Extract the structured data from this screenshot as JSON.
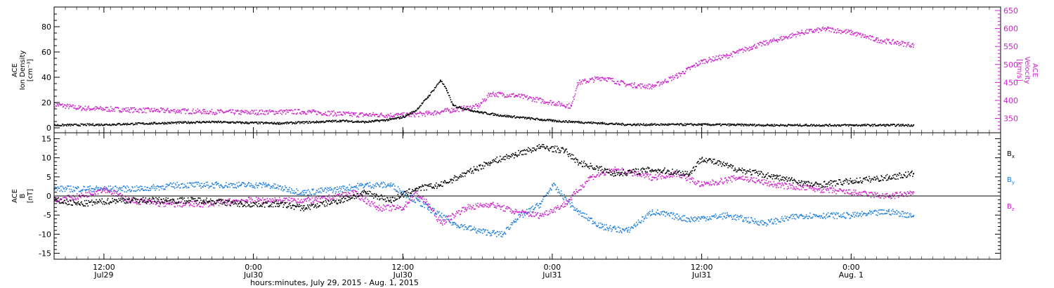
{
  "x_axis": {
    "label": "hours:minutes, July 29, 2015 - Aug. 1, 2015",
    "ticks": [
      {
        "time": "12:00",
        "date": "Jul29"
      },
      {
        "time": "0:00",
        "date": "Jul30"
      },
      {
        "time": "12:00",
        "date": "Jul30"
      },
      {
        "time": "0:00",
        "date": "Jul31"
      },
      {
        "time": "12:00",
        "date": "Jul31"
      },
      {
        "time": "0:00",
        "date": "Aug. 1"
      }
    ]
  },
  "top_panel": {
    "ylabel_lines": [
      "ACE",
      "Ion Density",
      "[cm⁻³]"
    ],
    "y2label_lines": [
      "ACE",
      "Velocity",
      "[km/s]"
    ],
    "left_ticks": [
      "0",
      "20",
      "40",
      "60",
      "80"
    ],
    "right_ticks": [
      "350",
      "400",
      "450",
      "500",
      "550",
      "600",
      "650"
    ]
  },
  "bottom_panel": {
    "ylabel_lines": [
      "ACE",
      "B",
      "[nT]"
    ],
    "ticks": [
      "-15",
      "-10",
      "-5",
      "0",
      "5",
      "10",
      "15"
    ],
    "legend": [
      {
        "base": "B",
        "sub": "x",
        "color": "#000000"
      },
      {
        "base": "B",
        "sub": "y",
        "color": "#1f7fdd"
      },
      {
        "base": "B",
        "sub": "z",
        "color": "#cc22cc"
      }
    ]
  },
  "colors": {
    "density": "#000000",
    "velocity": "#cc22cc",
    "bx": "#000000",
    "by": "#1f7fdd",
    "bz": "#cc22cc",
    "axis": "#000000"
  },
  "chart_data": [
    {
      "type": "scatter",
      "title": "",
      "xlabel": "hours:minutes, July 29, 2015 - Aug. 1, 2015",
      "ylabel": "ACE Ion Density [cm^-3]",
      "y2label": "ACE Velocity [km/s]",
      "xlim": [
        "2015-07-29T08:00",
        "2015-08-01T12:00"
      ],
      "ylim": [
        0,
        95
      ],
      "y2lim": [
        310,
        650
      ],
      "series": [
        {
          "name": "Ion Density",
          "axis": "left",
          "points": [
            [
              "2015-07-29T08:00",
              2.5
            ],
            [
              "2015-07-29T12:00",
              3
            ],
            [
              "2015-07-29T16:00",
              4
            ],
            [
              "2015-07-29T20:00",
              5
            ],
            [
              "2015-07-29T21:00",
              5
            ],
            [
              "2015-07-29T23:00",
              4.5
            ],
            [
              "2015-07-30T02:00",
              4
            ],
            [
              "2015-07-30T05:00",
              5
            ],
            [
              "2015-07-30T07:00",
              6
            ],
            [
              "2015-07-30T09:00",
              5
            ],
            [
              "2015-07-30T11:00",
              7
            ],
            [
              "2015-07-30T12:00",
              9
            ],
            [
              "2015-07-30T13:00",
              14
            ],
            [
              "2015-07-30T14:00",
              25
            ],
            [
              "2015-07-30T15:00",
              38
            ],
            [
              "2015-07-30T15:30",
              30
            ],
            [
              "2015-07-30T16:00",
              18
            ],
            [
              "2015-07-30T18:00",
              13
            ],
            [
              "2015-07-30T20:00",
              10
            ],
            [
              "2015-07-30T22:00",
              8
            ],
            [
              "2015-07-31T00:00",
              6
            ],
            [
              "2015-07-31T02:00",
              5
            ],
            [
              "2015-07-31T04:00",
              4
            ],
            [
              "2015-07-31T06:00",
              3
            ],
            [
              "2015-07-31T12:00",
              3
            ],
            [
              "2015-07-31T18:00",
              2.5
            ],
            [
              "2015-08-01T00:00",
              2.5
            ],
            [
              "2015-08-01T05:00",
              2.5
            ]
          ]
        },
        {
          "name": "Velocity",
          "axis": "right",
          "points": [
            [
              "2015-07-29T08:00",
              390
            ],
            [
              "2015-07-29T10:00",
              380
            ],
            [
              "2015-07-29T14:00",
              375
            ],
            [
              "2015-07-29T18:00",
              372
            ],
            [
              "2015-07-29T20:00",
              370
            ],
            [
              "2015-07-29T23:00",
              368
            ],
            [
              "2015-07-30T04:00",
              370
            ],
            [
              "2015-07-30T08:00",
              362
            ],
            [
              "2015-07-30T12:00",
              360
            ],
            [
              "2015-07-30T14:00",
              365
            ],
            [
              "2015-07-30T16:00",
              375
            ],
            [
              "2015-07-30T18:00",
              385
            ],
            [
              "2015-07-30T19:00",
              420
            ],
            [
              "2015-07-30T21:00",
              415
            ],
            [
              "2015-07-31T00:00",
              395
            ],
            [
              "2015-07-31T01:30",
              385
            ],
            [
              "2015-07-31T02:00",
              450
            ],
            [
              "2015-07-31T04:00",
              465
            ],
            [
              "2015-07-31T06:00",
              445
            ],
            [
              "2015-07-31T08:00",
              440
            ],
            [
              "2015-07-31T10:00",
              470
            ],
            [
              "2015-07-31T12:00",
              510
            ],
            [
              "2015-07-31T14:00",
              525
            ],
            [
              "2015-07-31T16:00",
              550
            ],
            [
              "2015-07-31T18:00",
              570
            ],
            [
              "2015-07-31T20:00",
              590
            ],
            [
              "2015-07-31T22:00",
              600
            ],
            [
              "2015-08-01T00:00",
              590
            ],
            [
              "2015-08-01T02:00",
              570
            ],
            [
              "2015-08-01T05:00",
              555
            ]
          ]
        }
      ]
    },
    {
      "type": "scatter",
      "title": "",
      "xlabel": "hours:minutes, July 29, 2015 - Aug. 1, 2015",
      "ylabel": "ACE B [nT]",
      "xlim": [
        "2015-07-29T08:00",
        "2015-08-01T12:00"
      ],
      "ylim": [
        -16,
        16
      ],
      "series": [
        {
          "name": "Bx",
          "points": [
            [
              "2015-07-29T08:00",
              -1
            ],
            [
              "2015-07-29T10:00",
              -2
            ],
            [
              "2015-07-29T13:00",
              -1
            ],
            [
              "2015-07-29T17:00",
              -1
            ],
            [
              "2015-07-29T20:00",
              -1
            ],
            [
              "2015-07-29T23:00",
              -2
            ],
            [
              "2015-07-30T02:00",
              -2
            ],
            [
              "2015-07-30T04:00",
              -3
            ],
            [
              "2015-07-30T07:00",
              -1
            ],
            [
              "2015-07-30T09:00",
              1
            ],
            [
              "2015-07-30T11:00",
              -1
            ],
            [
              "2015-07-30T13:00",
              2
            ],
            [
              "2015-07-30T15:00",
              3
            ],
            [
              "2015-07-30T17:00",
              6
            ],
            [
              "2015-07-30T19:00",
              9
            ],
            [
              "2015-07-30T21:00",
              11
            ],
            [
              "2015-07-30T23:00",
              13
            ],
            [
              "2015-07-31T01:00",
              12
            ],
            [
              "2015-07-31T02:00",
              9
            ],
            [
              "2015-07-31T05:00",
              6
            ],
            [
              "2015-07-31T08:00",
              7
            ],
            [
              "2015-07-31T11:00",
              6
            ],
            [
              "2015-07-31T12:00",
              10
            ],
            [
              "2015-07-31T15:00",
              7
            ],
            [
              "2015-07-31T18:00",
              5
            ],
            [
              "2015-07-31T21:00",
              3
            ],
            [
              "2015-08-01T00:00",
              4
            ],
            [
              "2015-08-01T03:00",
              5
            ],
            [
              "2015-08-01T05:00",
              6
            ]
          ]
        },
        {
          "name": "By",
          "points": [
            [
              "2015-07-29T08:00",
              2
            ],
            [
              "2015-07-29T11:00",
              2
            ],
            [
              "2015-07-29T15:00",
              2
            ],
            [
              "2015-07-29T18:00",
              3
            ],
            [
              "2015-07-29T21:00",
              3
            ],
            [
              "2015-07-29T23:00",
              3
            ],
            [
              "2015-07-30T01:00",
              3
            ],
            [
              "2015-07-30T04:00",
              1
            ],
            [
              "2015-07-30T07:00",
              2
            ],
            [
              "2015-07-30T09:00",
              3
            ],
            [
              "2015-07-30T11:00",
              3
            ],
            [
              "2015-07-30T12:00",
              1
            ],
            [
              "2015-07-30T14:00",
              -3
            ],
            [
              "2015-07-30T16:00",
              -7
            ],
            [
              "2015-07-30T18:00",
              -9
            ],
            [
              "2015-07-30T20:00",
              -10
            ],
            [
              "2015-07-30T21:00",
              -6
            ],
            [
              "2015-07-30T23:00",
              -2
            ],
            [
              "2015-07-31T00:00",
              3
            ],
            [
              "2015-07-31T02:00",
              -4
            ],
            [
              "2015-07-31T04:00",
              -8
            ],
            [
              "2015-07-31T06:00",
              -9
            ],
            [
              "2015-07-31T08:00",
              -4
            ],
            [
              "2015-07-31T11:00",
              -6
            ],
            [
              "2015-07-31T14:00",
              -5
            ],
            [
              "2015-07-31T17:00",
              -7
            ],
            [
              "2015-07-31T20:00",
              -5
            ],
            [
              "2015-08-01T00:00",
              -5
            ],
            [
              "2015-08-01T03:00",
              -4
            ],
            [
              "2015-08-01T05:00",
              -5
            ]
          ]
        },
        {
          "name": "Bz",
          "points": [
            [
              "2015-07-29T08:00",
              -1
            ],
            [
              "2015-07-29T10:00",
              0
            ],
            [
              "2015-07-29T12:00",
              2
            ],
            [
              "2015-07-29T14:00",
              -1
            ],
            [
              "2015-07-29T17:00",
              -2
            ],
            [
              "2015-07-29T20:00",
              -2
            ],
            [
              "2015-07-29T23:00",
              -1
            ],
            [
              "2015-07-30T02:00",
              -1
            ],
            [
              "2015-07-30T05:00",
              -1
            ],
            [
              "2015-07-30T08:00",
              1
            ],
            [
              "2015-07-30T10:00",
              -3
            ],
            [
              "2015-07-30T12:00",
              -3
            ],
            [
              "2015-07-30T13:00",
              1
            ],
            [
              "2015-07-30T14:00",
              -2
            ],
            [
              "2015-07-30T15:00",
              -7
            ],
            [
              "2015-07-30T17:00",
              -3
            ],
            [
              "2015-07-30T19:00",
              -2
            ],
            [
              "2015-07-30T21:00",
              -4
            ],
            [
              "2015-07-30T23:00",
              -5
            ],
            [
              "2015-07-31T01:00",
              -2
            ],
            [
              "2015-07-31T03:00",
              5
            ],
            [
              "2015-07-31T05:00",
              7
            ],
            [
              "2015-07-31T08:00",
              5
            ],
            [
              "2015-07-31T10:00",
              6
            ],
            [
              "2015-07-31T12:00",
              3
            ],
            [
              "2015-07-31T15:00",
              5
            ],
            [
              "2015-07-31T18:00",
              3
            ],
            [
              "2015-07-31T21:00",
              2
            ],
            [
              "2015-08-01T00:00",
              1
            ],
            [
              "2015-08-01T03:00",
              0
            ],
            [
              "2015-08-01T05:00",
              1
            ]
          ]
        }
      ]
    }
  ]
}
